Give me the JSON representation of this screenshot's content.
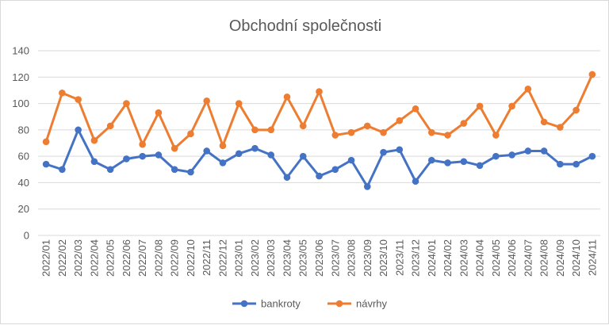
{
  "chart_data": {
    "type": "line",
    "title": "Obchodní společnosti",
    "xlabel": "",
    "ylabel": "",
    "ylim": [
      0,
      140
    ],
    "yticks": [
      0,
      20,
      40,
      60,
      80,
      100,
      120,
      140
    ],
    "grid": true,
    "legend": "bottom",
    "categories": [
      "2022/01",
      "2022/02",
      "2022/03",
      "2022/04",
      "2022/05",
      "2022/06",
      "2022/07",
      "2022/08",
      "2022/09",
      "2022/10",
      "2022/11",
      "2022/12",
      "2023/01",
      "2023/02",
      "2023/03",
      "2023/04",
      "2023/05",
      "2023/06",
      "2023/07",
      "2023/08",
      "2023/09",
      "2023/10",
      "2023/11",
      "2023/12",
      "2024/01",
      "2024/02",
      "2024/03",
      "2024/04",
      "2024/05",
      "2024/06",
      "2024/07",
      "2024/08",
      "2024/09",
      "2024/10",
      "2024/11"
    ],
    "series": [
      {
        "name": "bankroty",
        "color": "#4472c4",
        "values": [
          54,
          50,
          80,
          56,
          50,
          58,
          60,
          61,
          50,
          48,
          64,
          55,
          62,
          66,
          61,
          44,
          60,
          45,
          50,
          57,
          37,
          63,
          65,
          41,
          57,
          55,
          56,
          53,
          60,
          61,
          64,
          64,
          54,
          54,
          60
        ]
      },
      {
        "name": "návrhy",
        "color": "#ed7d31",
        "values": [
          71,
          108,
          103,
          72,
          83,
          100,
          69,
          93,
          66,
          77,
          102,
          68,
          100,
          80,
          80,
          105,
          83,
          109,
          76,
          78,
          83,
          78,
          87,
          96,
          78,
          76,
          85,
          98,
          76,
          98,
          111,
          86,
          82,
          95,
          122
        ]
      }
    ]
  }
}
